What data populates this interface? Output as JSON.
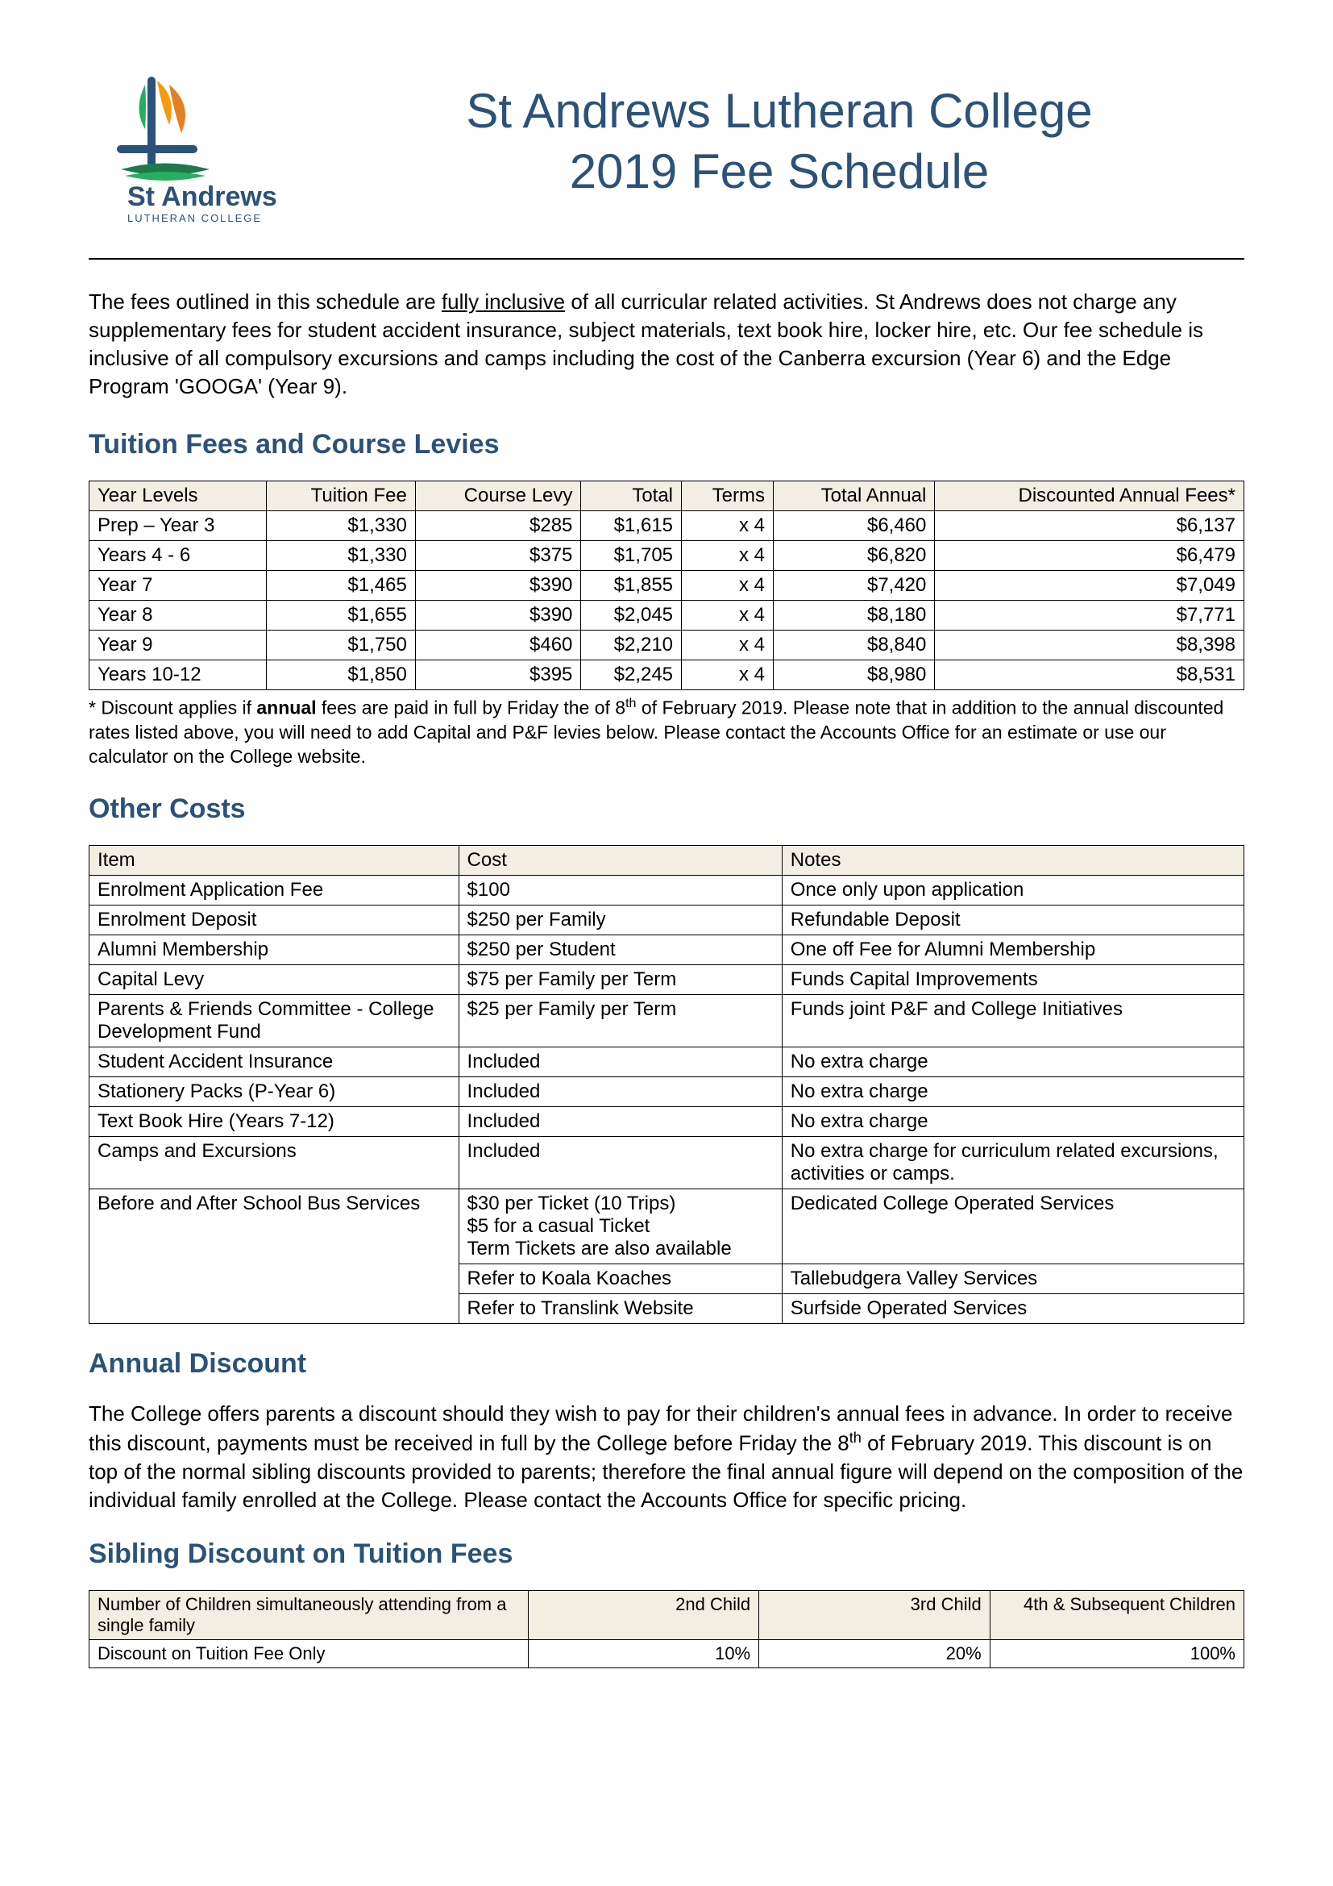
{
  "colors": {
    "heading": "#2b5279",
    "text": "#000000",
    "table_header_bg": "#f2eee2",
    "table_border": "#000000",
    "page_bg": "#ffffff",
    "logo_orange": "#f39c12",
    "logo_green": "#27ae60",
    "logo_blue": "#2b5279",
    "logo_dark_green": "#1e7a4a"
  },
  "typography": {
    "title_fontsize_pt": 36,
    "section_fontsize_pt": 20,
    "body_fontsize_pt": 15,
    "table_fontsize_pt": 14
  },
  "header": {
    "title_line1": "St Andrews Lutheran College",
    "title_line2": "2019 Fee Schedule",
    "logo": {
      "name": "St Andrews",
      "subtitle": "LUTHERAN COLLEGE"
    }
  },
  "intro": {
    "pre": "The fees outlined in this schedule are ",
    "underlined": "fully inclusive",
    "post": " of all curricular related activities. St Andrews does not charge any supplementary fees for student accident insurance, subject materials, text book hire, locker hire, etc. Our fee schedule is inclusive of all compulsory excursions and camps including the cost of the Canberra excursion (Year 6) and the Edge Program 'GOOGA' (Year 9)."
  },
  "tuition": {
    "heading": "Tuition Fees and Course Levies",
    "columns": [
      "Year Levels",
      "Tuition Fee",
      "Course Levy",
      "Total",
      "Terms",
      "Total Annual",
      "Discounted Annual Fees*"
    ],
    "column_align": [
      "left",
      "right",
      "right",
      "right",
      "right",
      "right",
      "right"
    ],
    "rows": [
      [
        "Prep – Year 3",
        "$1,330",
        "$285",
        "$1,615",
        "x 4",
        "$6,460",
        "$6,137"
      ],
      [
        "Years 4 - 6",
        "$1,330",
        "$375",
        "$1,705",
        "x 4",
        "$6,820",
        "$6,479"
      ],
      [
        "Year 7",
        "$1,465",
        "$390",
        "$1,855",
        "x 4",
        "$7,420",
        "$7,049"
      ],
      [
        "Year 8",
        "$1,655",
        "$390",
        "$2,045",
        "x 4",
        "$8,180",
        "$7,771"
      ],
      [
        "Year 9",
        "$1,750",
        "$460",
        "$2,210",
        "x 4",
        "$8,840",
        "$8,398"
      ],
      [
        "Years 10-12",
        "$1,850",
        "$395",
        "$2,245",
        "x 4",
        "$8,980",
        "$8,531"
      ]
    ],
    "footnote_pre": "* Discount applies if ",
    "footnote_bold": "annual",
    "footnote_mid": " fees are paid in full by Friday the of 8",
    "footnote_sup": "th",
    "footnote_post": " of February 2019. Please note that in addition to the annual discounted rates listed above, you will need to add Capital and P&F levies below. Please contact the Accounts Office for an estimate or use our calculator on the College website."
  },
  "other_costs": {
    "heading": "Other Costs",
    "columns": [
      "Item",
      "Cost",
      "Notes"
    ],
    "col_widths": [
      "32%",
      "28%",
      "40%"
    ],
    "rows": [
      [
        "Enrolment Application Fee",
        "$100",
        "Once only upon application"
      ],
      [
        "Enrolment Deposit",
        "$250 per Family",
        "Refundable Deposit"
      ],
      [
        "Alumni Membership",
        "$250 per Student",
        "One off Fee for Alumni Membership"
      ],
      [
        "Capital Levy",
        "$75 per Family per Term",
        "Funds Capital Improvements"
      ],
      [
        "Parents & Friends Committee - College Development Fund",
        "$25 per Family per Term",
        "Funds joint P&F and College Initiatives"
      ],
      [
        "Student Accident Insurance",
        "Included",
        "No extra charge"
      ],
      [
        "Stationery Packs (P-Year 6)",
        "Included",
        "No extra charge"
      ],
      [
        "Text Book Hire (Years 7-12)",
        "Included",
        "No extra charge"
      ],
      [
        "Camps and Excursions",
        "Included",
        "No extra charge for curriculum related excursions, activities or camps."
      ],
      [
        "Before and After School Bus Services",
        "$30 per Ticket (10 Trips)\n$5 for a casual Ticket\nTerm Tickets are also available",
        "Dedicated College Operated Services"
      ],
      [
        "",
        "Refer to Koala Koaches",
        "Tallebudgera Valley Services"
      ],
      [
        "",
        "Refer to Translink Website",
        "Surfside Operated Services"
      ]
    ],
    "merge_bus_rows": true
  },
  "annual_discount": {
    "heading": "Annual Discount",
    "para_pre": "The College offers parents a discount should they wish to pay for their children's annual fees in advance. In order to receive this discount, payments must be received in full by the College before Friday the 8",
    "para_sup": "th",
    "para_post": " of February 2019. This discount is on top of the normal sibling discounts provided to parents; therefore the final annual figure will depend on the composition of the individual family enrolled at the College. Please contact the Accounts Office for specific pricing."
  },
  "sibling": {
    "heading": "Sibling Discount on Tuition Fees",
    "columns": [
      "Number of Children simultaneously attending from a single family",
      "2nd Child",
      "3rd Child",
      "4th & Subsequent Children"
    ],
    "column_align": [
      "left",
      "right",
      "right",
      "right"
    ],
    "col_widths": [
      "38%",
      "20%",
      "20%",
      "22%"
    ],
    "rows": [
      [
        "Discount on Tuition Fee Only",
        "10%",
        "20%",
        "100%"
      ]
    ]
  }
}
